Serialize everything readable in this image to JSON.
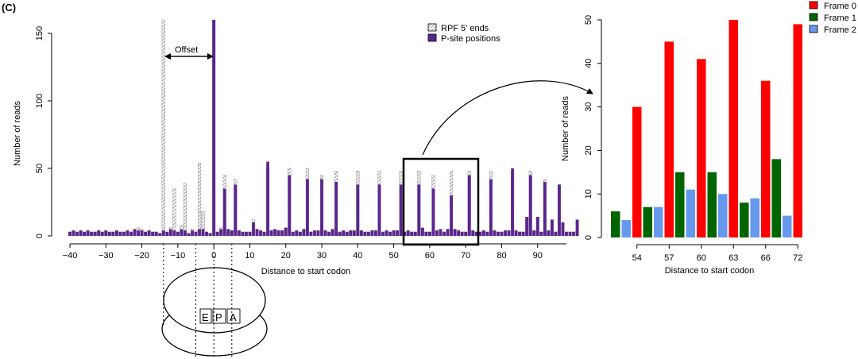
{
  "panel_label": "(C)",
  "chart_data": [
    {
      "type": "bar",
      "title": "",
      "xlabel": "Distance to start codon",
      "ylabel": "Number of reads",
      "xlim": [
        -40,
        98
      ],
      "ylim": [
        0,
        160
      ],
      "xticks": [
        -40,
        -30,
        -20,
        -10,
        0,
        10,
        20,
        30,
        40,
        50,
        60,
        70,
        80,
        90
      ],
      "yticks": [
        0,
        50,
        100,
        150
      ],
      "legend": {
        "position": "top-right",
        "entries": [
          "RPF 5' ends",
          "P-site positions"
        ]
      },
      "series": [
        {
          "name": "RPF 5' ends",
          "x_start": -40,
          "values": [
            3,
            4,
            3,
            4,
            3,
            4,
            3,
            3,
            4,
            3,
            4,
            3,
            3,
            4,
            3,
            3,
            4,
            3,
            5,
            6,
            5,
            3,
            4,
            3,
            3,
            2,
            160,
            3,
            6,
            35,
            3,
            8,
            39,
            2,
            5,
            4,
            54,
            18,
            3,
            2,
            160,
            3,
            6,
            45,
            5,
            4,
            42,
            4,
            3,
            3,
            3,
            12,
            5,
            4,
            3,
            50,
            4,
            5,
            4,
            4,
            6,
            50,
            3,
            4,
            3,
            5,
            50,
            3,
            4,
            4,
            45,
            4,
            3,
            5,
            48,
            3,
            4,
            3,
            4,
            4,
            48,
            4,
            3,
            3,
            4,
            4,
            48,
            3,
            4,
            3,
            4,
            4,
            48,
            3,
            4,
            3,
            3,
            48,
            6,
            3,
            3,
            45,
            4,
            5,
            3,
            5,
            48,
            5,
            4,
            3,
            3,
            48,
            4,
            3,
            3,
            4,
            3,
            48,
            4,
            3,
            3,
            4,
            4,
            48,
            4,
            3,
            3,
            14,
            48,
            4,
            14,
            3,
            42,
            4,
            12,
            3,
            38,
            10,
            3,
            3,
            3,
            12
          ]
        },
        {
          "name": "P-site positions",
          "x_start": -40,
          "values": [
            3,
            4,
            3,
            4,
            3,
            4,
            3,
            3,
            4,
            3,
            4,
            3,
            3,
            4,
            3,
            3,
            4,
            3,
            5,
            4,
            4,
            3,
            4,
            3,
            3,
            2,
            4,
            3,
            5,
            4,
            3,
            5,
            4,
            2,
            4,
            3,
            5,
            5,
            3,
            2,
            160,
            3,
            5,
            35,
            5,
            4,
            38,
            4,
            3,
            3,
            3,
            10,
            5,
            4,
            3,
            55,
            4,
            5,
            4,
            4,
            6,
            45,
            3,
            4,
            3,
            5,
            42,
            3,
            4,
            4,
            42,
            4,
            3,
            5,
            40,
            3,
            4,
            3,
            4,
            4,
            38,
            4,
            3,
            3,
            4,
            4,
            38,
            3,
            4,
            3,
            4,
            4,
            38,
            3,
            4,
            3,
            3,
            38,
            6,
            3,
            3,
            35,
            4,
            5,
            3,
            5,
            30,
            5,
            4,
            3,
            3,
            45,
            4,
            3,
            3,
            4,
            3,
            42,
            4,
            3,
            3,
            4,
            4,
            50,
            4,
            3,
            3,
            14,
            45,
            4,
            14,
            3,
            40,
            4,
            12,
            3,
            38,
            10,
            3,
            3,
            3,
            12
          ]
        }
      ],
      "annotations": {
        "offset_label": "Offset",
        "ribosome_sites": [
          "E",
          "P",
          "A"
        ],
        "zoom_box_x": [
          54,
          74
        ]
      }
    },
    {
      "type": "bar",
      "title": "",
      "xlabel": "Distance to start codon",
      "ylabel": "Number of reads",
      "categories": [
        "54",
        "57",
        "60",
        "63",
        "66",
        "72"
      ],
      "ylim": [
        0,
        50
      ],
      "yticks": [
        0,
        10,
        20,
        30,
        40,
        50
      ],
      "legend": {
        "position": "top-right",
        "entries": [
          "Frame 0",
          "Frame 1",
          "Frame 2"
        ]
      },
      "colors": {
        "frame0": "#ff0000",
        "frame1": "#006400",
        "frame2": "#6699ee"
      },
      "series": [
        {
          "name": "Frame 0",
          "values": [
            30,
            45,
            41,
            50,
            36,
            49
          ]
        },
        {
          "name": "Frame 1",
          "values": [
            6,
            7,
            15,
            15,
            8,
            18
          ]
        },
        {
          "name": "Frame 2",
          "values": [
            4,
            7,
            11,
            10,
            9,
            5
          ]
        }
      ]
    }
  ]
}
